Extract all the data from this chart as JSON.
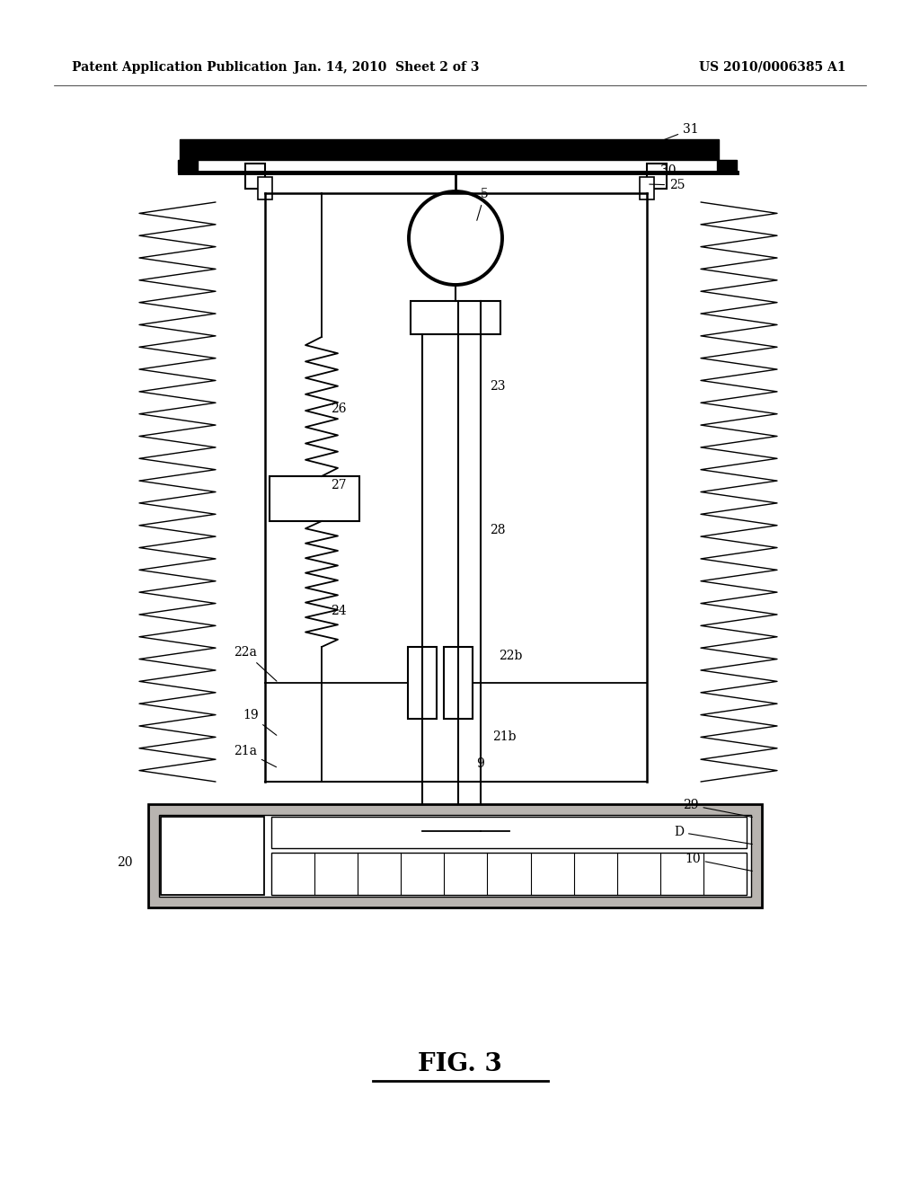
{
  "bg_color": "#ffffff",
  "header_left": "Patent Application Publication",
  "header_center": "Jan. 14, 2010  Sheet 2 of 3",
  "header_right": "US 2010/0006385 A1",
  "footer_label": "FIG. 3"
}
